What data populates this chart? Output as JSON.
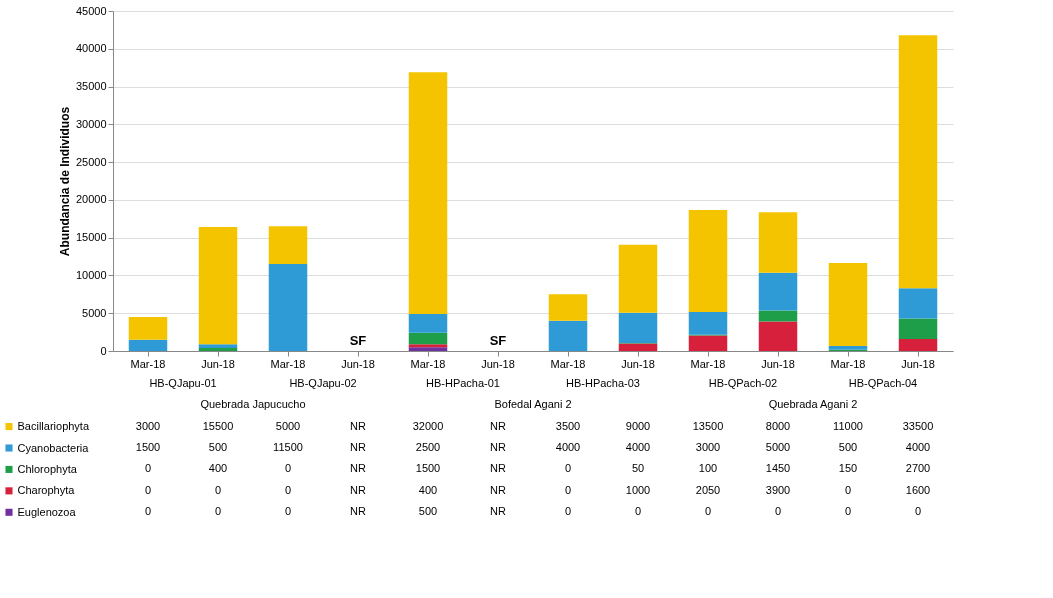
{
  "chart_data": {
    "type": "bar",
    "stacked": true,
    "ylabel": "Abundancia de Individuos",
    "categories": [
      "Mar-18",
      "Jun-18",
      "Mar-18",
      "Jun-18",
      "Mar-18",
      "Jun-18",
      "Mar-18",
      "Jun-18",
      "Mar-18",
      "Jun-18",
      "Mar-18",
      "Jun-18"
    ],
    "series": [
      {
        "name": "Euglenozoa",
        "color": "#7030a0",
        "values": [
          0,
          0,
          0,
          null,
          500,
          null,
          0,
          0,
          0,
          0,
          0,
          0
        ],
        "value_labels": [
          "0",
          "0",
          "0",
          "NR",
          "500",
          "NR",
          "0",
          "0",
          "0",
          "0",
          "0",
          "0"
        ]
      },
      {
        "name": "Charophyta",
        "color": "#d6203c",
        "values": [
          0,
          0,
          0,
          null,
          400,
          null,
          0,
          1000,
          2050,
          3900,
          0,
          1600
        ],
        "value_labels": [
          "0",
          "0",
          "0",
          "NR",
          "400",
          "NR",
          "0",
          "1000",
          "2050",
          "3900",
          "0",
          "1600"
        ]
      },
      {
        "name": "Chlorophyta",
        "color": "#1f9e4a",
        "values": [
          0,
          400,
          0,
          null,
          1500,
          null,
          0,
          50,
          100,
          1450,
          150,
          2700
        ],
        "value_labels": [
          "0",
          "400",
          "0",
          "NR",
          "1500",
          "NR",
          "0",
          "50",
          "100",
          "1450",
          "150",
          "2700"
        ]
      },
      {
        "name": "Cyanobacteria",
        "color": "#2e9bd6",
        "values": [
          1500,
          500,
          11500,
          null,
          2500,
          null,
          4000,
          4000,
          3000,
          5000,
          500,
          4000
        ],
        "value_labels": [
          "1500",
          "500",
          "11500",
          "NR",
          "2500",
          "NR",
          "4000",
          "4000",
          "3000",
          "5000",
          "500",
          "4000"
        ]
      },
      {
        "name": "Bacillariophyta",
        "color": "#f5c400",
        "values": [
          3000,
          15500,
          5000,
          null,
          32000,
          null,
          3500,
          9000,
          13500,
          8000,
          11000,
          33500
        ],
        "value_labels": [
          "3000",
          "15500",
          "5000",
          "NR",
          "32000",
          "NR",
          "3500",
          "9000",
          "13500",
          "8000",
          "11000",
          "33500"
        ]
      }
    ],
    "ylim": [
      0,
      45000
    ],
    "yticks": [
      0,
      5000,
      10000,
      15000,
      20000,
      25000,
      30000,
      35000,
      40000,
      45000
    ],
    "grid": "y",
    "legend": "bottom left",
    "annotations": [
      "SF",
      "SF",
      "HB-QJapu-01",
      "HB-QJapu-02",
      "HB-HPacha-01",
      "HB-HPacha-03",
      "HB-QPach-02",
      "HB-QPach-04",
      "Quebrada Japucucho",
      "Bofedal Agani 2",
      "Quebrada Agani 2"
    ]
  }
}
